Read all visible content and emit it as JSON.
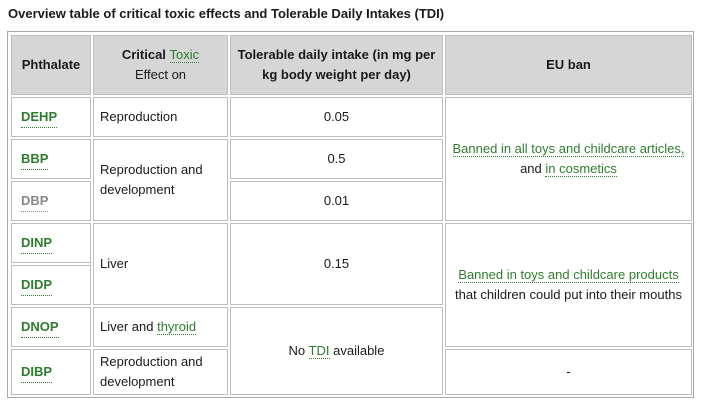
{
  "title": "Overview table of critical toxic effects and Tolerable Daily Intakes (TDI)",
  "headers": {
    "phthalate": "Phthalate",
    "effect_pre": "Critical ",
    "effect_link": "Toxic",
    "effect_post": "Effect on",
    "tdi": "Tolerable daily intake (in mg per kg body weight per day)",
    "eu_ban": "EU ban"
  },
  "phthalates": {
    "dehp": "DEHP",
    "bbp": "BBP",
    "dbp": "DBP",
    "dinp": "DINP",
    "didp": "DIDP",
    "dnop": "DNOP",
    "dibp": "DIBP"
  },
  "effects": {
    "reproduction": "Reproduction",
    "repro_dev": "Reproduction and development",
    "liver": "Liver",
    "liver_thyroid_pre": "Liver and ",
    "liver_thyroid_link": "thyroid",
    "repro_dev_2": "Reproduction and development"
  },
  "tdi": {
    "dehp": "0.05",
    "bbp": "0.5",
    "dbp": "0.01",
    "dinp_didp": "0.15",
    "none_pre": "No ",
    "none_link": "TDI",
    "none_post": " available"
  },
  "eu_ban": {
    "group1_link1": "Banned in all toys and childcare articles,",
    "group1_and": "and ",
    "group1_link2": "in cosmetics",
    "group2_link": "Banned in toys and childcare products",
    "group2_rest": "that children could put into their mouths",
    "dibp": "-"
  }
}
